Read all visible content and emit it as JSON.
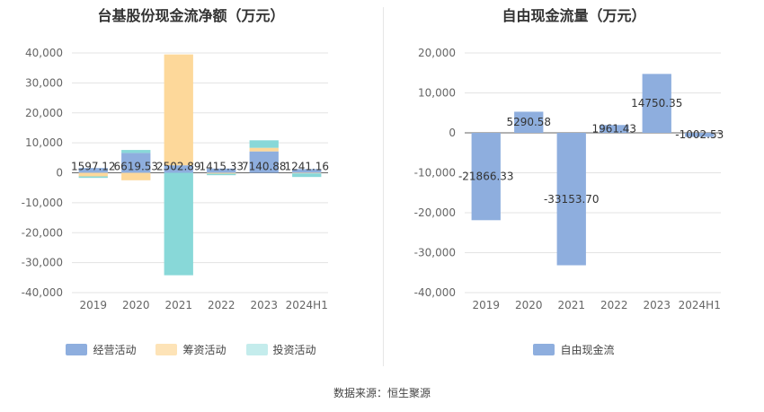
{
  "source_text": "数据来源：恒生聚源",
  "chart_data": [
    {
      "type": "bar",
      "stacked": true,
      "title": "台基股份现金流净额（万元）",
      "categories": [
        "2019",
        "2020",
        "2021",
        "2022",
        "2023",
        "2024H1"
      ],
      "y_ticks": [
        "40,000",
        "30,000",
        "20,000",
        "10,000",
        "0",
        "-10,000",
        "-20,000",
        "-30,000",
        "-40,000"
      ],
      "ylim": [
        -40000,
        40000
      ],
      "grid": true,
      "legend_position": "bottom",
      "series": [
        {
          "name": "经营活动",
          "color": "#8eaede",
          "values": [
            1597.12,
            6619.53,
            2502.89,
            1415.33,
            7140.88,
            1241.16
          ],
          "labels": [
            "1597.12",
            "6619.53",
            "2502.89",
            "1415.33",
            "7140.88",
            "1241.16"
          ]
        },
        {
          "name": "筹资活动",
          "color": "#fdd89a",
          "values": [
            -1200,
            -2500,
            37000,
            -300,
            1200,
            -200
          ]
        },
        {
          "name": "投资活动",
          "color": "#88d8d8",
          "values": [
            -500,
            1000,
            -34200,
            -500,
            2500,
            -1200
          ]
        }
      ],
      "legend_colors": [
        "#8eaede",
        "#fde3b7",
        "#c4ecec"
      ]
    },
    {
      "type": "bar",
      "title": "自由现金流量（万元）",
      "categories": [
        "2019",
        "2020",
        "2021",
        "2022",
        "2023",
        "2024H1"
      ],
      "y_ticks": [
        "20,000",
        "10,000",
        "0",
        "-10,000",
        "-20,000",
        "-30,000",
        "-40,000"
      ],
      "ylim": [
        -40000,
        20000
      ],
      "grid": true,
      "legend_position": "bottom",
      "series": [
        {
          "name": "自由现金流",
          "color": "#8eaede",
          "values": [
            -21866.33,
            5290.58,
            -33153.7,
            1961.43,
            14750.35,
            -1002.53
          ],
          "labels": [
            "-21866.33",
            "5290.58",
            "-33153.70",
            "1961.43",
            "14750.35",
            "-1002.53"
          ]
        }
      ],
      "legend_colors": [
        "#8eaede"
      ]
    }
  ]
}
